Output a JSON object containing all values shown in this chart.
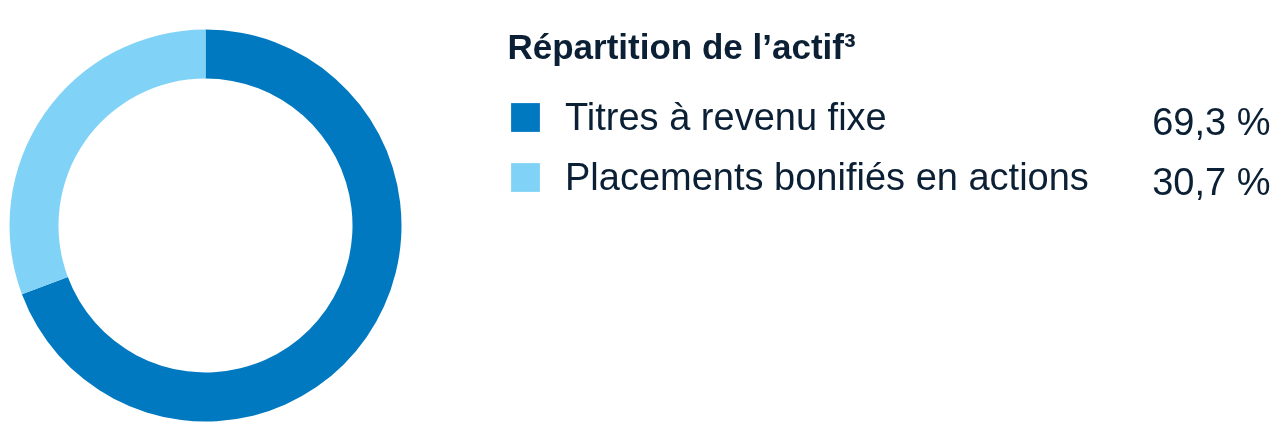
{
  "chart_data": {
    "type": "donut",
    "title": "Répartition de l’actif³",
    "categories": [
      "Titres à revenu fixe",
      "Placements bonifiés en actions"
    ],
    "values": [
      69.3,
      30.7
    ],
    "colors": [
      "#0079c1",
      "#80d3f6"
    ],
    "value_labels": [
      "69,3 %",
      "30,7 %"
    ],
    "legend": "right"
  }
}
